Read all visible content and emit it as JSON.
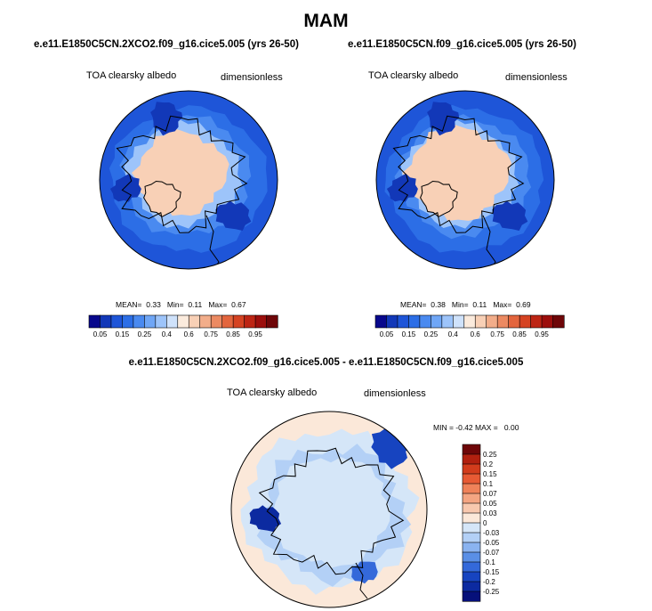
{
  "figure": {
    "title": "MAM",
    "panels": [
      {
        "name": "panel-2xco2",
        "title": "e.e11.E1850C5CN.2XCO2.f09_g16.cice5.005 (yrs 26-50)",
        "left_label": "TOA clearsky albedo",
        "right_label": "dimensionless",
        "stats": {
          "mean_label": "MEAN=",
          "mean": "0.33",
          "min_label": "Min=",
          "min": "0.11",
          "max_label": "Max=",
          "max": "0.67"
        }
      },
      {
        "name": "panel-control",
        "title": "e.e11.E1850C5CN.f09_g16.cice5.005 (yrs 26-50)",
        "left_label": "TOA clearsky albedo",
        "right_label": "dimensionless",
        "stats": {
          "mean_label": "MEAN=",
          "mean": "0.38",
          "min_label": "Min=",
          "min": "0.11",
          "max_label": "Max=",
          "max": "0.69"
        }
      }
    ],
    "diff_panel": {
      "title": "e.e11.E1850C5CN.2XCO2.f09_g16.cice5.005 - e.e11.E1850C5CN.f09_g16.cice5.005",
      "left_label": "TOA clearsky albedo",
      "right_label": "dimensionless",
      "minmax": {
        "min_label": "MIN =",
        "min": "-0.42",
        "max_label": "MAX =",
        "max": "0.00"
      }
    }
  },
  "chart_data": [
    {
      "type": "heatmap",
      "projection": "north-polar-stereographic",
      "title": "e.e11.E1850C5CN.2XCO2.f09_g16.cice5.005 (yrs 26-50)",
      "variable": "TOA clearsky albedo",
      "units": "dimensionless",
      "mean": 0.33,
      "min": 0.11,
      "max": 0.67,
      "colorbar_levels": [
        0.05,
        0.1,
        0.15,
        0.2,
        0.25,
        0.3,
        0.4,
        0.5,
        0.6,
        0.65,
        0.7,
        0.75,
        0.8,
        0.85,
        0.9,
        0.95
      ],
      "colorbar_tick_labels": [
        "0.05",
        "0.15",
        "0.25",
        "0.4",
        "0.6",
        "0.75",
        "0.85",
        "0.95"
      ],
      "colors": [
        "#08088c",
        "#1238b8",
        "#1e55d8",
        "#2c6ee6",
        "#4a8af0",
        "#6fa6f6",
        "#9dc4fa",
        "#cfe2fb",
        "#fbebdd",
        "#f8d0b6",
        "#f2ad8a",
        "#ec8a62",
        "#e3653d",
        "#d54322",
        "#bd2514",
        "#9c0e0c",
        "#6e0608"
      ]
    },
    {
      "type": "heatmap",
      "projection": "north-polar-stereographic",
      "title": "e.e11.E1850C5CN.f09_g16.cice5.005 (yrs 26-50)",
      "variable": "TOA clearsky albedo",
      "units": "dimensionless",
      "mean": 0.38,
      "min": 0.11,
      "max": 0.69,
      "colorbar_levels": [
        0.05,
        0.1,
        0.15,
        0.2,
        0.25,
        0.3,
        0.4,
        0.5,
        0.6,
        0.65,
        0.7,
        0.75,
        0.8,
        0.85,
        0.9,
        0.95
      ],
      "colorbar_tick_labels": [
        "0.05",
        "0.15",
        "0.25",
        "0.4",
        "0.6",
        "0.75",
        "0.85",
        "0.95"
      ],
      "colors": [
        "#08088c",
        "#1238b8",
        "#1e55d8",
        "#2c6ee6",
        "#4a8af0",
        "#6fa6f6",
        "#9dc4fa",
        "#cfe2fb",
        "#fbebdd",
        "#f8d0b6",
        "#f2ad8a",
        "#ec8a62",
        "#e3653d",
        "#d54322",
        "#bd2514",
        "#9c0e0c",
        "#6e0608"
      ]
    },
    {
      "type": "heatmap",
      "projection": "north-polar-stereographic",
      "title": "e.e11.E1850C5CN.2XCO2.f09_g16.cice5.005 - e.e11.E1850C5CN.f09_g16.cice5.005",
      "variable": "TOA clearsky albedo",
      "units": "dimensionless",
      "min": -0.42,
      "max": 0.0,
      "colorbar_levels": [
        -0.25,
        -0.2,
        -0.15,
        -0.1,
        -0.07,
        -0.05,
        -0.03,
        0,
        0.03,
        0.05,
        0.07,
        0.1,
        0.15,
        0.2,
        0.25
      ],
      "colorbar_tick_labels": [
        "0.25",
        "0.2",
        "0.15",
        "0.1",
        "0.07",
        "0.05",
        "0.03",
        "0",
        "-0.03",
        "-0.05",
        "-0.07",
        "-0.1",
        "-0.15",
        "-0.2",
        "-0.25"
      ],
      "colors": [
        "#6e0608",
        "#b1200f",
        "#d23c1c",
        "#e75a34",
        "#ef8259",
        "#f4a582",
        "#f8c8ae",
        "#fbe8d9",
        "#d5e6f8",
        "#b3d0f6",
        "#8ab3f0",
        "#5a8fe6",
        "#3469da",
        "#1744c0",
        "#0c2aa0",
        "#06107a"
      ]
    }
  ]
}
